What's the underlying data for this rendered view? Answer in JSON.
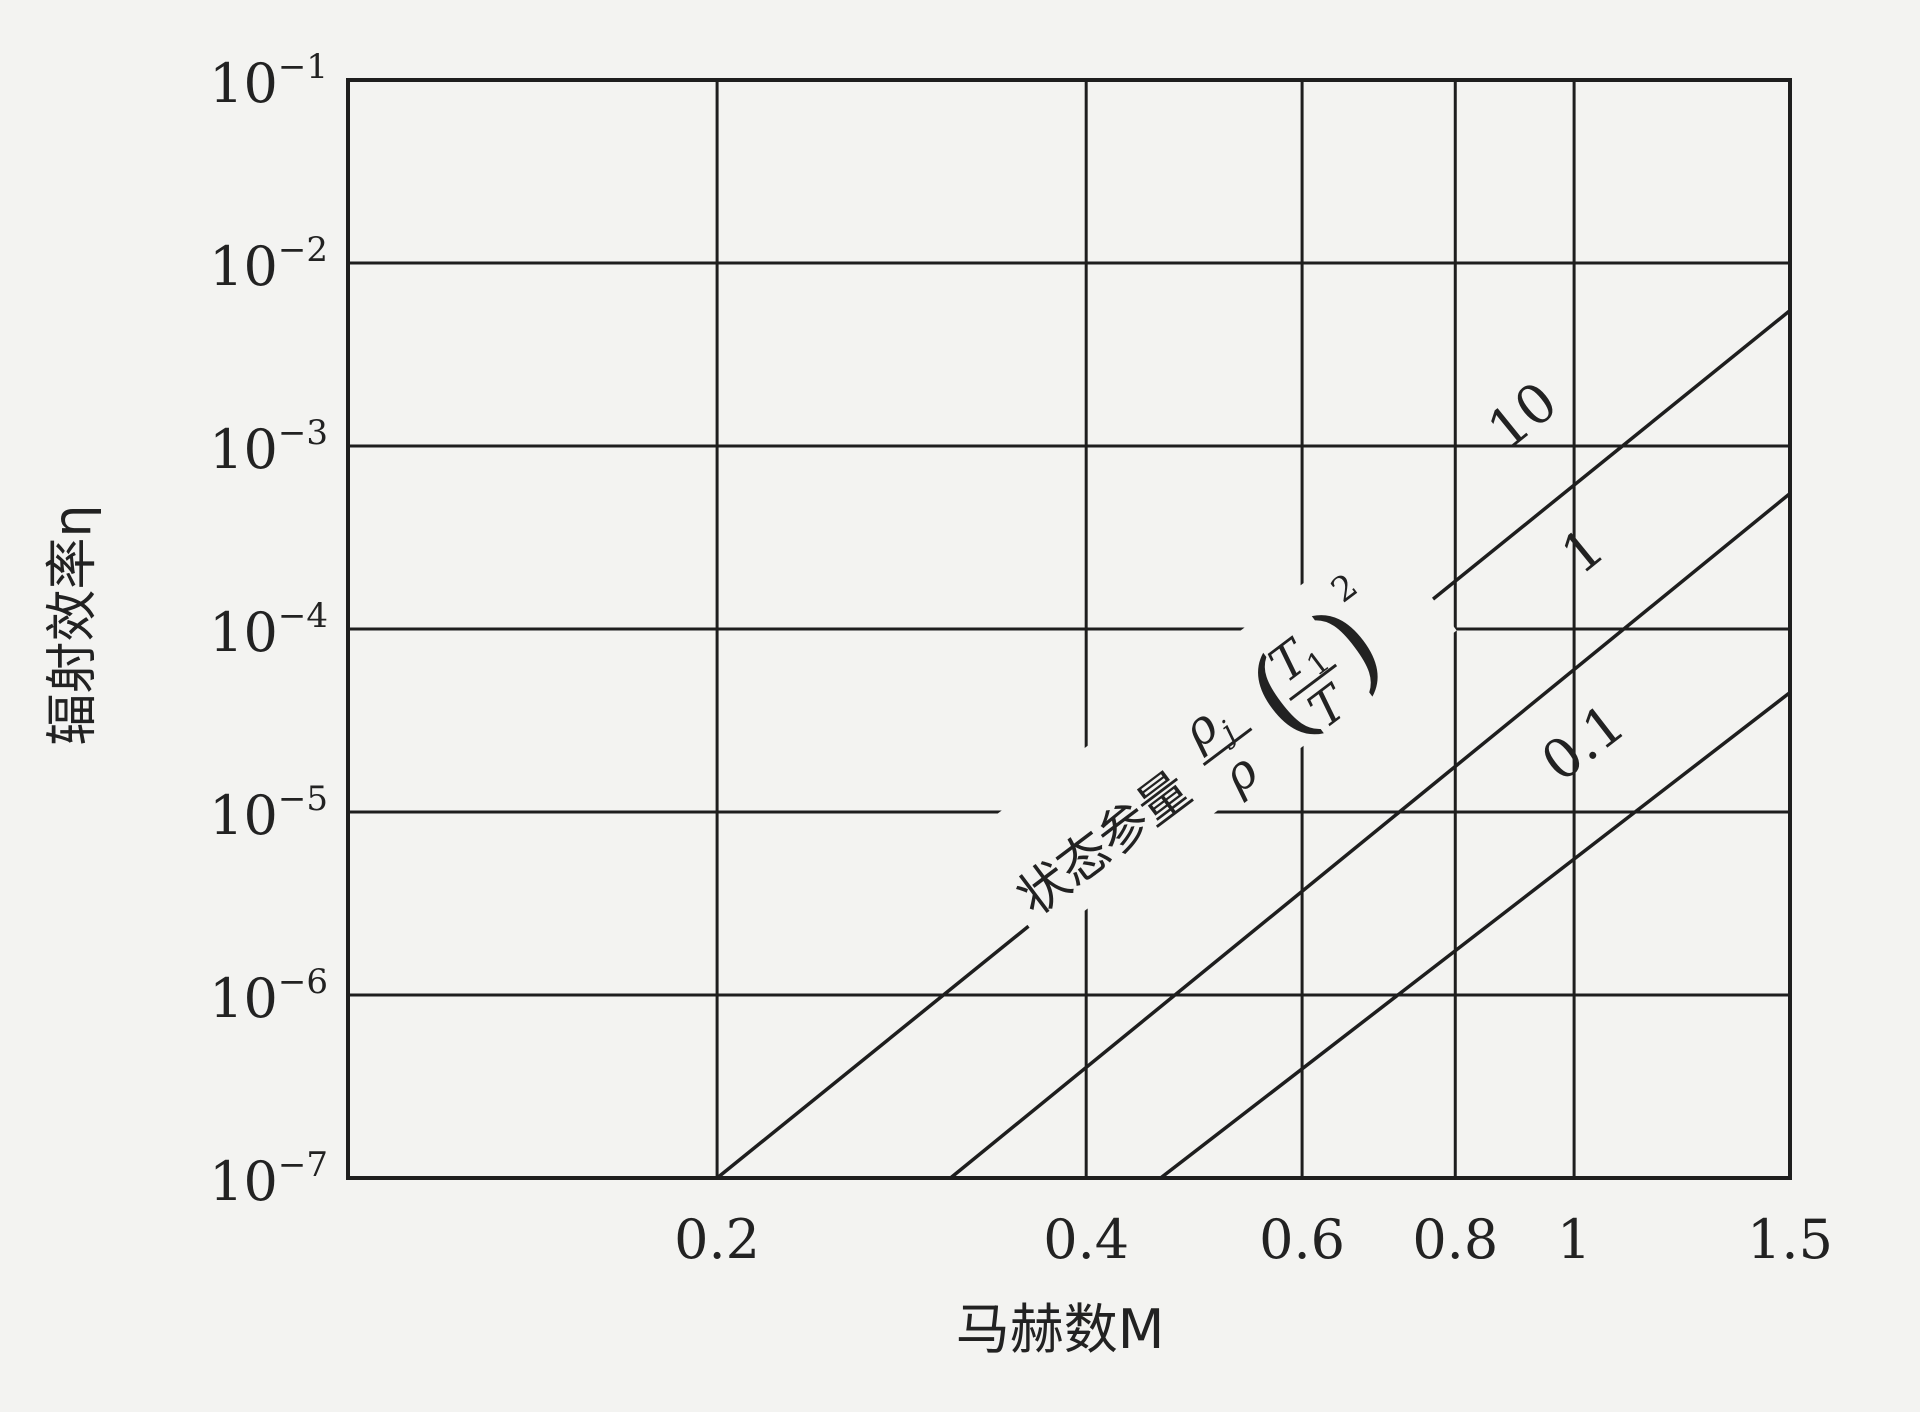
{
  "chart_data": {
    "type": "line",
    "title": "",
    "xlabel": "马赫数M",
    "ylabel": "辐射效率η",
    "x_scale": "log",
    "y_scale": "log",
    "xlim": [
      0.1,
      1.5
    ],
    "ylim": [
      1e-07,
      0.1
    ],
    "x_ticks": [
      {
        "value": 0.2,
        "label": "0.2"
      },
      {
        "value": 0.4,
        "label": "0.4"
      },
      {
        "value": 0.6,
        "label": "0.6"
      },
      {
        "value": 0.8,
        "label": "0.8"
      },
      {
        "value": 1,
        "label": "1"
      },
      {
        "value": 1.5,
        "label": "1.5"
      }
    ],
    "y_ticks": [
      {
        "value": 1e-07,
        "base": "10",
        "exp": "−7"
      },
      {
        "value": 1e-06,
        "base": "10",
        "exp": "−6"
      },
      {
        "value": 1e-05,
        "base": "10",
        "exp": "−5"
      },
      {
        "value": 0.0001,
        "base": "10",
        "exp": "−4"
      },
      {
        "value": 0.001,
        "base": "10",
        "exp": "−3"
      },
      {
        "value": 0.01,
        "base": "10",
        "exp": "−2"
      },
      {
        "value": 0.1,
        "base": "10",
        "exp": "−1"
      }
    ],
    "grid": true,
    "parameter_label": {
      "prefix": "状态参量",
      "rho_j": "ρ",
      "rho_j_sub": "j",
      "rho": "ρ",
      "T1": "T",
      "T1_sub": "1",
      "T": "T",
      "exponent": "2"
    },
    "series": [
      {
        "name": "10",
        "x": [
          0.2,
          1.5
        ],
        "y": [
          1e-07,
          0.0055
        ]
      },
      {
        "name": "1",
        "x": [
          0.31,
          1.5
        ],
        "y": [
          1e-07,
          0.00055
        ]
      },
      {
        "name": "0.1",
        "x": [
          0.46,
          1.5
        ],
        "y": [
          1e-07,
          4.5e-05
        ]
      }
    ]
  }
}
